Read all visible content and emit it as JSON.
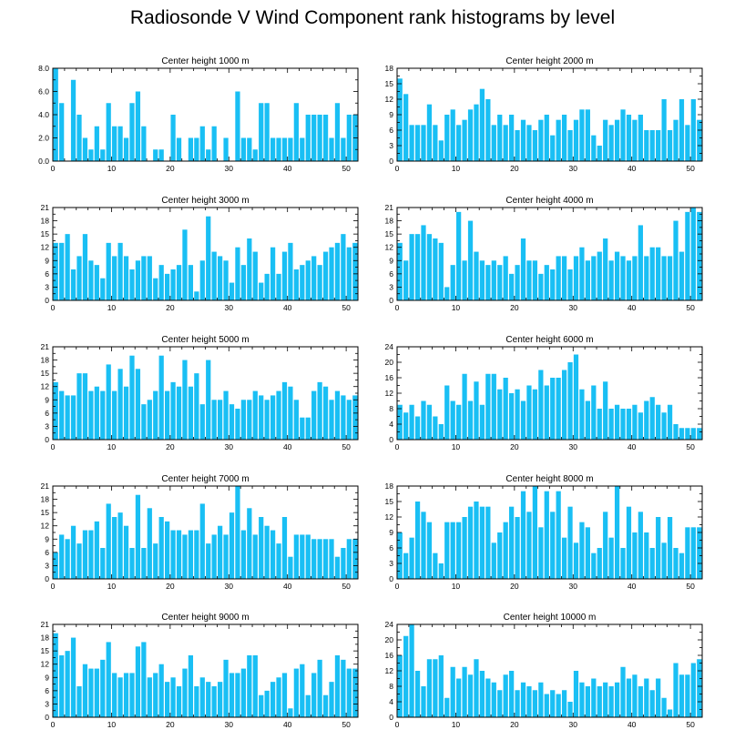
{
  "title": "Radiosonde V Wind Component rank histograms by level",
  "colors": {
    "bar": "#19BFF4",
    "axis": "#000000"
  },
  "chart_data": [
    {
      "type": "bar",
      "title": "Center height 1000 m",
      "xlim": [
        0,
        52
      ],
      "xticks": [
        0,
        10,
        20,
        30,
        40,
        50
      ],
      "ylim": [
        0,
        8
      ],
      "yticks": [
        0,
        2,
        4,
        6,
        8
      ],
      "ytick_labels": [
        "0.0",
        "2.0",
        "4.0",
        "6.0",
        "8.0"
      ],
      "values": [
        8,
        5,
        0,
        7,
        4,
        2,
        1,
        3,
        1,
        5,
        3,
        3,
        2,
        5,
        6,
        3,
        0,
        1,
        1,
        0,
        4,
        2,
        0,
        2,
        2,
        3,
        1,
        3,
        0,
        2,
        0,
        6,
        2,
        2,
        1,
        5,
        5,
        2,
        2,
        2,
        2,
        5,
        2,
        4,
        4,
        4,
        4,
        2,
        5,
        2,
        4,
        4
      ]
    },
    {
      "type": "bar",
      "title": "Center height 2000 m",
      "xlim": [
        0,
        52
      ],
      "xticks": [
        0,
        10,
        20,
        30,
        40,
        50
      ],
      "ylim": [
        0,
        18
      ],
      "yticks": [
        0,
        3,
        6,
        9,
        12,
        15,
        18
      ],
      "ytick_labels": [
        "0",
        "3",
        "6",
        "9",
        "12",
        "15",
        "18"
      ],
      "values": [
        16,
        13,
        7,
        7,
        7,
        11,
        7,
        4,
        9,
        10,
        7,
        8,
        10,
        11,
        14,
        12,
        7,
        9,
        7,
        9,
        6,
        8,
        7,
        6,
        8,
        9,
        5,
        8,
        9,
        6,
        8,
        10,
        10,
        5,
        3,
        8,
        7,
        8,
        10,
        9,
        8,
        9,
        6,
        6,
        6,
        12,
        6,
        8,
        12,
        7,
        12,
        8
      ]
    },
    {
      "type": "bar",
      "title": "Center height 3000 m",
      "xlim": [
        0,
        52
      ],
      "xticks": [
        0,
        10,
        20,
        30,
        40,
        50
      ],
      "ylim": [
        0,
        21
      ],
      "yticks": [
        0,
        3,
        6,
        9,
        12,
        15,
        18,
        21
      ],
      "ytick_labels": [
        "0",
        "3",
        "6",
        "9",
        "12",
        "15",
        "18",
        "21"
      ],
      "values": [
        13,
        13,
        15,
        7,
        10,
        15,
        9,
        8,
        5,
        13,
        10,
        13,
        10,
        7,
        9,
        10,
        10,
        5,
        8,
        6,
        7,
        8,
        16,
        8,
        2,
        9,
        19,
        11,
        10,
        9,
        4,
        12,
        8,
        14,
        11,
        4,
        6,
        12,
        6,
        11,
        13,
        7,
        8,
        9,
        10,
        8,
        11,
        12,
        13,
        15,
        12,
        13
      ]
    },
    {
      "type": "bar",
      "title": "Center height 4000 m",
      "xlim": [
        0,
        52
      ],
      "xticks": [
        0,
        10,
        20,
        30,
        40,
        50
      ],
      "ylim": [
        0,
        21
      ],
      "yticks": [
        0,
        3,
        6,
        9,
        12,
        15,
        18,
        21
      ],
      "ytick_labels": [
        "0",
        "3",
        "6",
        "9",
        "12",
        "15",
        "18",
        "21"
      ],
      "values": [
        13,
        9,
        15,
        15,
        17,
        15,
        14,
        13,
        3,
        8,
        20,
        9,
        18,
        11,
        9,
        8,
        9,
        8,
        10,
        6,
        8,
        14,
        9,
        9,
        6,
        8,
        7,
        10,
        10,
        7,
        10,
        12,
        9,
        10,
        11,
        14,
        9,
        11,
        10,
        9,
        10,
        17,
        10,
        12,
        12,
        10,
        10,
        18,
        11,
        20,
        21,
        20
      ]
    },
    {
      "type": "bar",
      "title": "Center height 5000 m",
      "xlim": [
        0,
        52
      ],
      "xticks": [
        0,
        10,
        20,
        30,
        40,
        50
      ],
      "ylim": [
        0,
        21
      ],
      "yticks": [
        0,
        3,
        6,
        9,
        12,
        15,
        18,
        21
      ],
      "ytick_labels": [
        "0",
        "3",
        "6",
        "9",
        "12",
        "15",
        "18",
        "21"
      ],
      "values": [
        13,
        11,
        10,
        10,
        15,
        15,
        11,
        12,
        11,
        17,
        11,
        16,
        12,
        19,
        16,
        8,
        9,
        11,
        19,
        11,
        13,
        12,
        18,
        12,
        15,
        8,
        18,
        9,
        9,
        11,
        8,
        7,
        9,
        9,
        11,
        10,
        9,
        10,
        11,
        13,
        12,
        9,
        5,
        5,
        11,
        13,
        12,
        9,
        11,
        10,
        9,
        10
      ]
    },
    {
      "type": "bar",
      "title": "Center height 6000 m",
      "xlim": [
        0,
        52
      ],
      "xticks": [
        0,
        10,
        20,
        30,
        40,
        50
      ],
      "ylim": [
        0,
        24
      ],
      "yticks": [
        0,
        4,
        8,
        12,
        16,
        20,
        24
      ],
      "ytick_labels": [
        "0",
        "4",
        "8",
        "12",
        "16",
        "20",
        "24"
      ],
      "values": [
        9,
        7,
        9,
        6,
        10,
        9,
        6,
        4,
        14,
        10,
        9,
        17,
        10,
        15,
        9,
        17,
        17,
        13,
        16,
        12,
        13,
        10,
        14,
        13,
        18,
        14,
        16,
        16,
        18,
        20,
        22,
        13,
        10,
        14,
        8,
        15,
        8,
        9,
        8,
        8,
        9,
        7,
        10,
        11,
        9,
        7,
        9,
        4,
        3,
        3,
        3,
        3
      ]
    },
    {
      "type": "bar",
      "title": "Center height 7000 m",
      "xlim": [
        0,
        52
      ],
      "xticks": [
        0,
        10,
        20,
        30,
        40,
        50
      ],
      "ylim": [
        0,
        21
      ],
      "yticks": [
        0,
        3,
        6,
        9,
        12,
        15,
        18,
        21
      ],
      "ytick_labels": [
        "0",
        "3",
        "6",
        "9",
        "12",
        "15",
        "18",
        "21"
      ],
      "values": [
        6,
        10,
        9,
        12,
        8,
        11,
        11,
        13,
        7,
        17,
        14,
        15,
        12,
        7,
        19,
        7,
        16,
        8,
        14,
        13,
        11,
        11,
        10,
        11,
        11,
        17,
        8,
        10,
        12,
        10,
        15,
        21,
        11,
        16,
        10,
        14,
        12,
        11,
        8,
        14,
        5,
        10,
        10,
        10,
        9,
        9,
        9,
        9,
        5,
        7,
        9,
        9
      ]
    },
    {
      "type": "bar",
      "title": "Center height 8000 m",
      "xlim": [
        0,
        52
      ],
      "xticks": [
        0,
        10,
        20,
        30,
        40,
        50
      ],
      "ylim": [
        0,
        18
      ],
      "yticks": [
        0,
        3,
        6,
        9,
        12,
        15,
        18
      ],
      "ytick_labels": [
        "0",
        "3",
        "6",
        "9",
        "12",
        "15",
        "18"
      ],
      "values": [
        9,
        5,
        8,
        15,
        13,
        11,
        5,
        3,
        11,
        11,
        11,
        12,
        14,
        15,
        14,
        14,
        7,
        9,
        11,
        14,
        12,
        17,
        13,
        18,
        10,
        17,
        13,
        17,
        8,
        14,
        7,
        11,
        10,
        5,
        6,
        13,
        8,
        18,
        6,
        14,
        9,
        13,
        9,
        6,
        12,
        7,
        12,
        6,
        5,
        10,
        10,
        10
      ]
    },
    {
      "type": "bar",
      "title": "Center height 9000 m",
      "xlim": [
        0,
        52
      ],
      "xticks": [
        0,
        10,
        20,
        30,
        40,
        50
      ],
      "ylim": [
        0,
        21
      ],
      "yticks": [
        0,
        3,
        6,
        9,
        12,
        15,
        18,
        21
      ],
      "ytick_labels": [
        "0",
        "3",
        "6",
        "9",
        "12",
        "15",
        "18",
        "21"
      ],
      "values": [
        19,
        14,
        15,
        18,
        7,
        12,
        11,
        11,
        13,
        17,
        10,
        9,
        10,
        10,
        16,
        17,
        9,
        10,
        12,
        8,
        9,
        7,
        11,
        14,
        7,
        9,
        8,
        7,
        8,
        13,
        10,
        10,
        11,
        14,
        14,
        5,
        6,
        8,
        9,
        10,
        2,
        11,
        12,
        5,
        10,
        13,
        5,
        8,
        14,
        13,
        11,
        11
      ]
    },
    {
      "type": "bar",
      "title": "Center height 10000 m",
      "xlim": [
        0,
        52
      ],
      "xticks": [
        0,
        10,
        20,
        30,
        40,
        50
      ],
      "ylim": [
        0,
        24
      ],
      "yticks": [
        0,
        4,
        8,
        12,
        16,
        20,
        24
      ],
      "ytick_labels": [
        "0",
        "4",
        "8",
        "12",
        "16",
        "20",
        "24"
      ],
      "values": [
        16,
        21,
        24,
        12,
        8,
        15,
        15,
        16,
        5,
        13,
        10,
        13,
        11,
        15,
        12,
        10,
        9,
        7,
        11,
        12,
        7,
        9,
        8,
        7,
        9,
        6,
        7,
        6,
        7,
        4,
        12,
        9,
        8,
        10,
        8,
        9,
        8,
        9,
        13,
        10,
        11,
        8,
        10,
        7,
        10,
        5,
        2,
        14,
        11,
        11,
        14,
        15
      ]
    }
  ]
}
